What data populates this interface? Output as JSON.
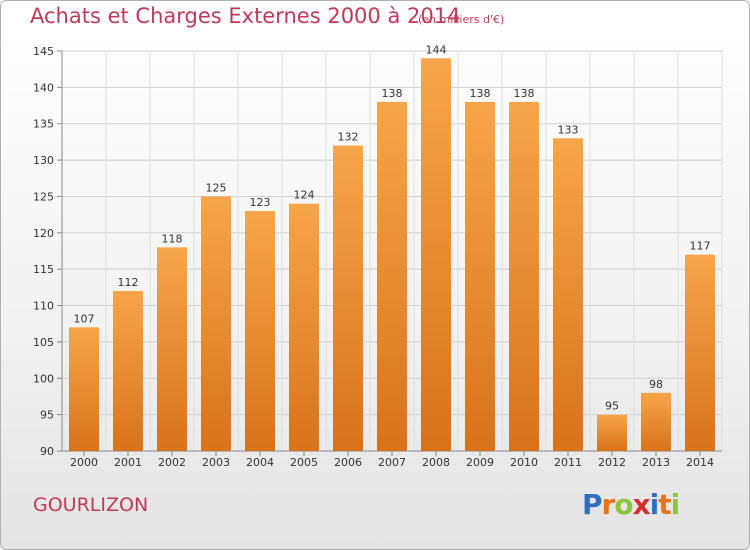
{
  "title": "Achats et Charges Externes 2000 à 2014",
  "subtitle": "(en milliers d'€)",
  "commune": "GOURLIZON",
  "logo": {
    "letters": [
      {
        "ch": "P",
        "color": "#2f6fc0"
      },
      {
        "ch": "r",
        "color": "#e8731a"
      },
      {
        "ch": "o",
        "color": "#8cc63f"
      },
      {
        "ch": "x",
        "color": "#d42e2e"
      },
      {
        "ch": "i",
        "color": "#2f6fc0"
      },
      {
        "ch": "t",
        "color": "#e8731a"
      },
      {
        "ch": "i",
        "color": "#8cc63f"
      }
    ]
  },
  "colors": {
    "bar_top": "#f7a54a",
    "bar_bottom": "#d8731a",
    "title": "#c0395a"
  },
  "chart_data": {
    "type": "bar",
    "categories": [
      "2000",
      "2001",
      "2002",
      "2003",
      "2004",
      "2005",
      "2006",
      "2007",
      "2008",
      "2009",
      "2010",
      "2011",
      "2012",
      "2013",
      "2014"
    ],
    "values": [
      107,
      112,
      118,
      125,
      123,
      124,
      132,
      138,
      144,
      138,
      138,
      133,
      95,
      98,
      117
    ],
    "ylim": [
      90,
      145
    ],
    "yticks": [
      90,
      95,
      100,
      105,
      110,
      115,
      120,
      125,
      130,
      135,
      140,
      145
    ],
    "grid": true
  }
}
